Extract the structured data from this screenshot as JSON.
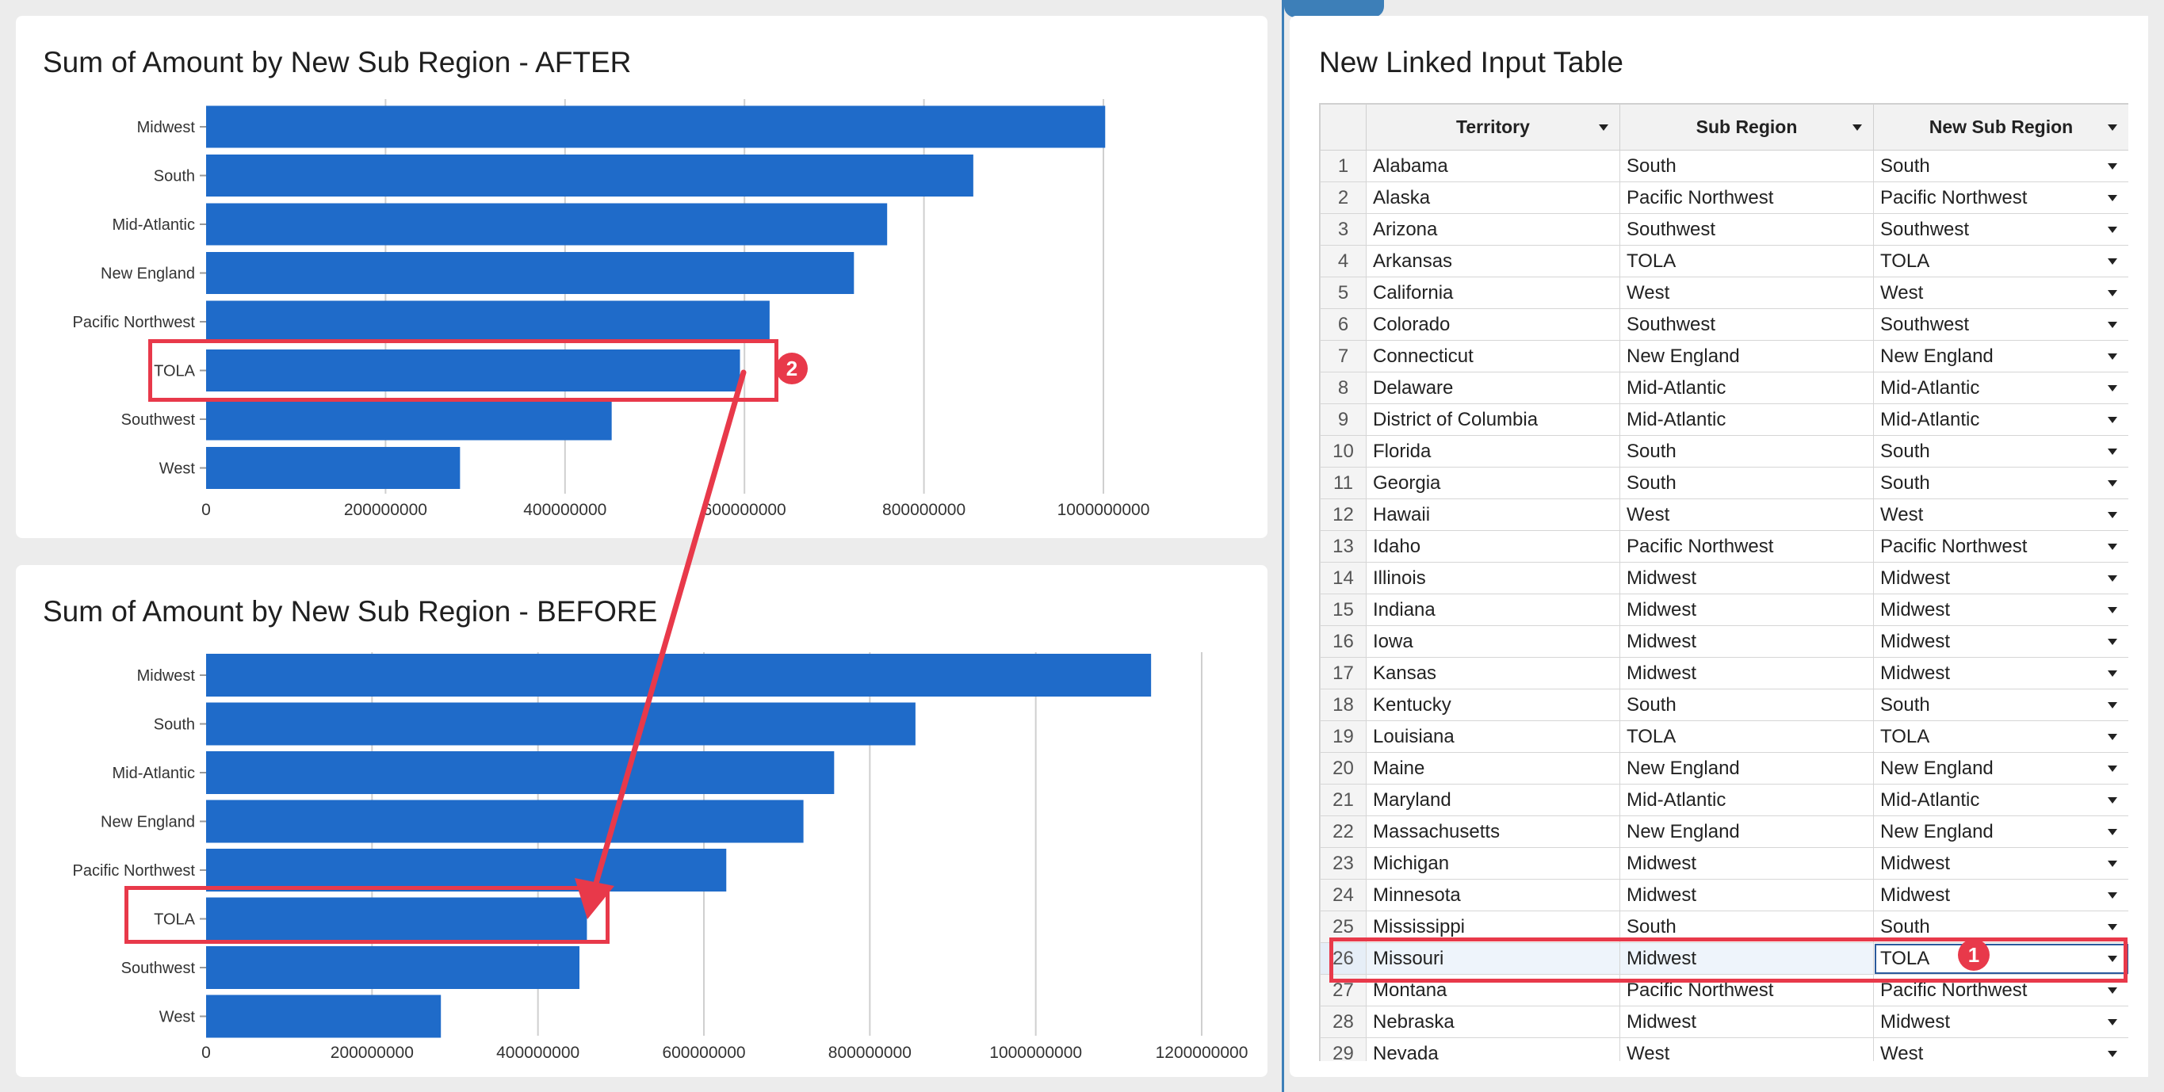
{
  "after_chart": {
    "title": "Sum of Amount by New Sub Region - AFTER"
  },
  "before_chart": {
    "title": "Sum of Amount by New Sub Region - BEFORE"
  },
  "chart_data": [
    {
      "type": "bar",
      "title": "Sum of Amount by New Sub Region - AFTER",
      "orientation": "horizontal",
      "categories": [
        "Midwest",
        "South",
        "Mid-Atlantic",
        "New England",
        "Pacific Northwest",
        "TOLA",
        "Southwest",
        "West"
      ],
      "values": [
        1002000000,
        855000000,
        759000000,
        722000000,
        628000000,
        595000000,
        452000000,
        283000000
      ],
      "xlim": [
        0,
        1000000000
      ],
      "ticks": [
        "0",
        "200000000",
        "400000000",
        "600000000",
        "800000000",
        "1000000000"
      ],
      "grid": true,
      "color": "#1f6bc9"
    },
    {
      "type": "bar",
      "title": "Sum of Amount by New Sub Region - BEFORE",
      "orientation": "horizontal",
      "categories": [
        "Midwest",
        "South",
        "Mid-Atlantic",
        "New England",
        "Pacific Northwest",
        "TOLA",
        "Southwest",
        "West"
      ],
      "values": [
        1139000000,
        855000000,
        757000000,
        720000000,
        627000000,
        459000000,
        450000000,
        283000000
      ],
      "xlim": [
        0,
        1200000000
      ],
      "ticks": [
        "0",
        "200000000",
        "400000000",
        "600000000",
        "800000000",
        "1000000000",
        "1200000000"
      ],
      "grid": true,
      "color": "#1f6bc9"
    }
  ],
  "table": {
    "title": "New Linked Input Table",
    "columns": [
      "Territory",
      "Sub Region",
      "New Sub Region"
    ],
    "rows": [
      [
        "1",
        "Alabama",
        "South",
        "South"
      ],
      [
        "2",
        "Alaska",
        "Pacific Northwest",
        "Pacific Northwest"
      ],
      [
        "3",
        "Arizona",
        "Southwest",
        "Southwest"
      ],
      [
        "4",
        "Arkansas",
        "TOLA",
        "TOLA"
      ],
      [
        "5",
        "California",
        "West",
        "West"
      ],
      [
        "6",
        "Colorado",
        "Southwest",
        "Southwest"
      ],
      [
        "7",
        "Connecticut",
        "New England",
        "New England"
      ],
      [
        "8",
        "Delaware",
        "Mid-Atlantic",
        "Mid-Atlantic"
      ],
      [
        "9",
        "District of Columbia",
        "Mid-Atlantic",
        "Mid-Atlantic"
      ],
      [
        "10",
        "Florida",
        "South",
        "South"
      ],
      [
        "11",
        "Georgia",
        "South",
        "South"
      ],
      [
        "12",
        "Hawaii",
        "West",
        "West"
      ],
      [
        "13",
        "Idaho",
        "Pacific Northwest",
        "Pacific Northwest"
      ],
      [
        "14",
        "Illinois",
        "Midwest",
        "Midwest"
      ],
      [
        "15",
        "Indiana",
        "Midwest",
        "Midwest"
      ],
      [
        "16",
        "Iowa",
        "Midwest",
        "Midwest"
      ],
      [
        "17",
        "Kansas",
        "Midwest",
        "Midwest"
      ],
      [
        "18",
        "Kentucky",
        "South",
        "South"
      ],
      [
        "19",
        "Louisiana",
        "TOLA",
        "TOLA"
      ],
      [
        "20",
        "Maine",
        "New England",
        "New England"
      ],
      [
        "21",
        "Maryland",
        "Mid-Atlantic",
        "Mid-Atlantic"
      ],
      [
        "22",
        "Massachusetts",
        "New England",
        "New England"
      ],
      [
        "23",
        "Michigan",
        "Midwest",
        "Midwest"
      ],
      [
        "24",
        "Minnesota",
        "Midwest",
        "Midwest"
      ],
      [
        "25",
        "Mississippi",
        "South",
        "South"
      ],
      [
        "26",
        "Missouri",
        "Midwest",
        "TOLA"
      ],
      [
        "27",
        "Montana",
        "Pacific Northwest",
        "Pacific Northwest"
      ],
      [
        "28",
        "Nebraska",
        "Midwest",
        "Midwest"
      ],
      [
        "29",
        "Nevada",
        "West",
        "West"
      ]
    ],
    "highlighted_row": "26"
  },
  "annotations": {
    "badge_1": "1",
    "badge_2": "2"
  },
  "colors": {
    "bar": "#1f6bc9",
    "annotation": "#e8394a",
    "accent": "#3d7fb8"
  }
}
